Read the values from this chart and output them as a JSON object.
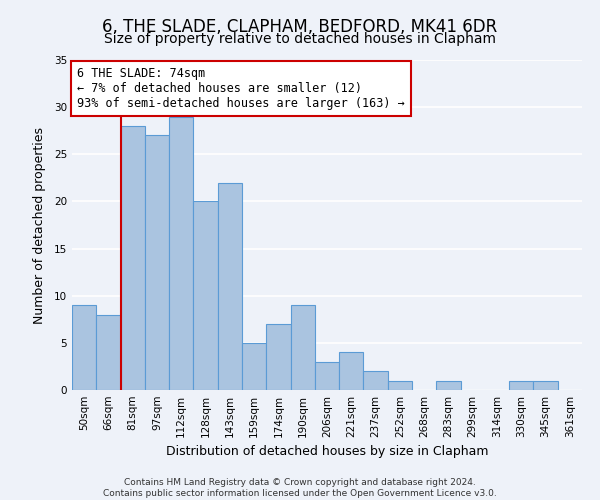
{
  "title": "6, THE SLADE, CLAPHAM, BEDFORD, MK41 6DR",
  "subtitle": "Size of property relative to detached houses in Clapham",
  "xlabel": "Distribution of detached houses by size in Clapham",
  "ylabel": "Number of detached properties",
  "bar_labels": [
    "50sqm",
    "66sqm",
    "81sqm",
    "97sqm",
    "112sqm",
    "128sqm",
    "143sqm",
    "159sqm",
    "174sqm",
    "190sqm",
    "206sqm",
    "221sqm",
    "237sqm",
    "252sqm",
    "268sqm",
    "283sqm",
    "299sqm",
    "314sqm",
    "330sqm",
    "345sqm",
    "361sqm"
  ],
  "bar_values": [
    9,
    8,
    28,
    27,
    29,
    20,
    22,
    5,
    7,
    9,
    3,
    4,
    2,
    1,
    0,
    1,
    0,
    0,
    1,
    1,
    0
  ],
  "bar_color": "#aac4e0",
  "bar_edge_color": "#5b9bd5",
  "marker_line_color": "#cc0000",
  "annotation_text": "6 THE SLADE: 74sqm\n← 7% of detached houses are smaller (12)\n93% of semi-detached houses are larger (163) →",
  "annotation_box_color": "#ffffff",
  "annotation_box_edge_color": "#cc0000",
  "ylim": [
    0,
    35
  ],
  "yticks": [
    0,
    5,
    10,
    15,
    20,
    25,
    30,
    35
  ],
  "footer_line1": "Contains HM Land Registry data © Crown copyright and database right 2024.",
  "footer_line2": "Contains public sector information licensed under the Open Government Licence v3.0.",
  "background_color": "#eef2f9",
  "grid_color": "#ffffff",
  "title_fontsize": 12,
  "subtitle_fontsize": 10,
  "axis_label_fontsize": 9,
  "tick_fontsize": 7.5,
  "annotation_fontsize": 8.5,
  "footer_fontsize": 6.5
}
